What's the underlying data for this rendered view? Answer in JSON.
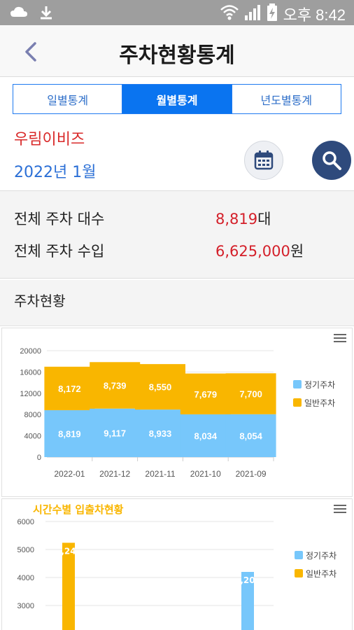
{
  "status": {
    "time_label": "오후 8:42",
    "icons": [
      "cloud-icon",
      "download-icon",
      "wifi-icon",
      "signal-icon",
      "battery-charging-icon"
    ]
  },
  "header": {
    "title": "주차현황통계",
    "back_icon": "chevron-left-icon"
  },
  "tabs": [
    {
      "label": "일별통계",
      "active": false
    },
    {
      "label": "월별통계",
      "active": true
    },
    {
      "label": "년도별통계",
      "active": false
    }
  ],
  "selection": {
    "company": "우림이비즈",
    "period": "2022년 1월"
  },
  "summary": {
    "total_count_label": "전체 주차 대수",
    "total_count_value": "8,819",
    "total_count_unit": "대",
    "total_income_label": "전체 주차 수입",
    "total_income_value": "6,625,000",
    "total_income_unit": "원"
  },
  "section": {
    "title": "주차현황"
  },
  "colors": {
    "regular": "#77c7fb",
    "general": "#f9b600",
    "accent": "#0a74f0",
    "value_red": "#d4202a"
  },
  "chart_data": [
    {
      "type": "bar",
      "stacked": true,
      "title": "",
      "categories": [
        "2022-01",
        "2021-12",
        "2021-11",
        "2021-10",
        "2021-09"
      ],
      "series": [
        {
          "name": "정기주차",
          "values": [
            8819,
            9117,
            8933,
            8034,
            8054
          ],
          "labels": [
            "8,819",
            "9,117",
            "8,933",
            "8,034",
            "8,054"
          ],
          "color": "#77c7fb"
        },
        {
          "name": "일반주차",
          "values": [
            8172,
            8739,
            8550,
            7679,
            7700
          ],
          "labels": [
            "8,172",
            "8,739",
            "8,550",
            "7,679",
            "7,700"
          ],
          "color": "#f9b600"
        }
      ],
      "yticks": [
        "0",
        "4000",
        "8000",
        "12000",
        "16000",
        "20000"
      ],
      "ylim": [
        0,
        20000
      ],
      "legend": "right",
      "grid": true
    },
    {
      "type": "bar",
      "title": "시간수별 입출차현황",
      "series": [
        {
          "name": "정기주차",
          "color": "#77c7fb",
          "visible_values": [
            4200
          ],
          "labels": [
            ",20"
          ]
        },
        {
          "name": "일반주차",
          "color": "#f9b600",
          "visible_values": [
            5240
          ],
          "labels": [
            ",24"
          ]
        }
      ],
      "yticks": [
        "3000",
        "4000",
        "5000",
        "6000"
      ],
      "ylim": [
        2000,
        6000
      ],
      "legend": "right",
      "grid": true
    }
  ]
}
